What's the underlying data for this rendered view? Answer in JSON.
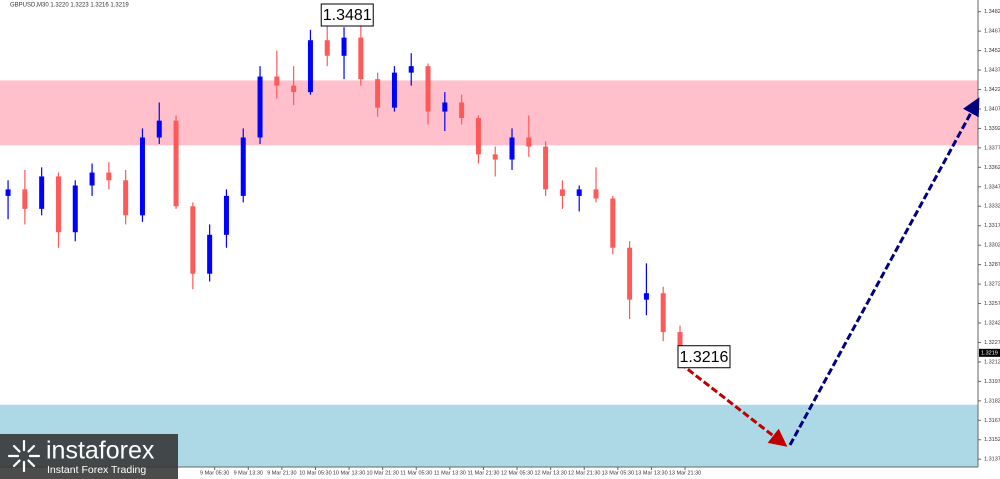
{
  "chart_data": {
    "type": "candlestick",
    "title": "GBPUSD,M30  1.3220 1.3223 1.3216 1.3219",
    "open": [
      1.334,
      1.3345,
      1.333,
      1.3355,
      1.3312,
      1.3348,
      1.3358,
      1.3352,
      1.3325,
      1.3385,
      1.3398,
      1.3332,
      1.328,
      1.331,
      1.334,
      1.3385,
      1.3432,
      1.3425,
      1.342,
      1.346,
      1.3448,
      1.3462,
      1.343,
      1.3408,
      1.3435,
      1.344,
      1.3405,
      1.3412,
      1.34,
      1.3372,
      1.3368,
      1.3385,
      1.3378,
      1.3345,
      1.334,
      1.3345,
      1.3338,
      1.33,
      1.326,
      1.3265,
      1.3235
    ],
    "high": [
      1.3352,
      1.336,
      1.3362,
      1.3358,
      1.3352,
      1.3365,
      1.3366,
      1.336,
      1.3392,
      1.3412,
      1.3402,
      1.3335,
      1.3318,
      1.3345,
      1.3392,
      1.344,
      1.3452,
      1.344,
      1.3468,
      1.3481,
      1.347,
      1.3472,
      1.3435,
      1.344,
      1.345,
      1.3442,
      1.342,
      1.3418,
      1.3402,
      1.3378,
      1.3392,
      1.3402,
      1.3382,
      1.3352,
      1.3348,
      1.3362,
      1.334,
      1.3305,
      1.3288,
      1.327,
      1.324
    ],
    "low": [
      1.3322,
      1.3318,
      1.3325,
      1.33,
      1.3305,
      1.334,
      1.3345,
      1.3318,
      1.332,
      1.338,
      1.333,
      1.3268,
      1.3274,
      1.33,
      1.3335,
      1.338,
      1.3415,
      1.341,
      1.3418,
      1.344,
      1.343,
      1.3425,
      1.3401,
      1.3405,
      1.3425,
      1.3395,
      1.339,
      1.3395,
      1.3365,
      1.3355,
      1.336,
      1.337,
      1.334,
      1.333,
      1.3328,
      1.3335,
      1.3295,
      1.3245,
      1.3248,
      1.3228,
      1.3216
    ],
    "close": [
      1.3345,
      1.333,
      1.3355,
      1.3312,
      1.3348,
      1.3358,
      1.3352,
      1.3325,
      1.3385,
      1.3398,
      1.3332,
      1.328,
      1.331,
      1.334,
      1.3385,
      1.3432,
      1.3425,
      1.342,
      1.346,
      1.3448,
      1.3462,
      1.343,
      1.3408,
      1.3435,
      1.344,
      1.3405,
      1.3412,
      1.34,
      1.3372,
      1.3368,
      1.3385,
      1.3378,
      1.3345,
      1.334,
      1.3345,
      1.3338,
      1.33,
      1.326,
      1.3265,
      1.3235,
      1.3219
    ],
    "up_color": "#0000ff",
    "down_color": "#ff5a5a",
    "xlim": [
      -0.48,
      57.74
    ],
    "xticks": [
      {
        "value": 12.3,
        "label": "9 Mar 05:30"
      },
      {
        "value": 14.3,
        "label": "9 Mar 13:30"
      },
      {
        "value": 16.3,
        "label": "9 Mar 21:30"
      },
      {
        "value": 18.3,
        "label": "10 Mar 05:30"
      },
      {
        "value": 20.3,
        "label": "10 Mar 13:30"
      },
      {
        "value": 22.3,
        "label": "10 Mar 21:30"
      },
      {
        "value": 24.3,
        "label": "11 Mar 05:30"
      },
      {
        "value": 26.3,
        "label": "11 Mar 13:30"
      },
      {
        "value": 28.3,
        "label": "11 Mar 21:30"
      },
      {
        "value": 30.3,
        "label": "12 Mar 05:30"
      },
      {
        "value": 32.3,
        "label": "12 Mar 13:30"
      },
      {
        "value": 34.3,
        "label": "12 Mar 21:30"
      },
      {
        "value": 36.3,
        "label": "13 Mar 05:30"
      },
      {
        "value": 38.3,
        "label": "13 Mar 13:30"
      },
      {
        "value": 40.3,
        "label": "13 Mar 21:30"
      }
    ],
    "ylim": [
      1.3131,
      1.3491
    ],
    "yticks": [
      1.3482,
      1.3467,
      1.3452,
      1.3437,
      1.3422,
      1.3407,
      1.3392,
      1.3377,
      1.3362,
      1.3347,
      1.3332,
      1.3317,
      1.3302,
      1.3287,
      1.3272,
      1.3257,
      1.3242,
      1.3227,
      1.3212,
      1.3197,
      1.3182,
      1.3167,
      1.3152,
      1.3137
    ],
    "last_price": 1.3219,
    "zones": [
      {
        "from": 1.3379,
        "to": 1.3429,
        "color": "#ffc0cb"
      },
      {
        "from": 1.3131,
        "to": 1.3179,
        "color": "#add8e6"
      }
    ],
    "annotations": [
      {
        "value": 1.3481,
        "at": "high"
      },
      {
        "value": 1.3216,
        "at": "low"
      }
    ],
    "forecast": [
      {
        "color": "#c00000",
        "x": [
          40.0,
          46.25
        ],
        "y": [
          1.3211,
          1.3148
        ]
      },
      {
        "color": "#000080",
        "x": [
          46.55,
          57.74
        ],
        "y": [
          1.3148,
          1.3414
        ]
      }
    ]
  },
  "branding": {
    "name": "instaforex",
    "tagline": "Instant Forex Trading"
  }
}
